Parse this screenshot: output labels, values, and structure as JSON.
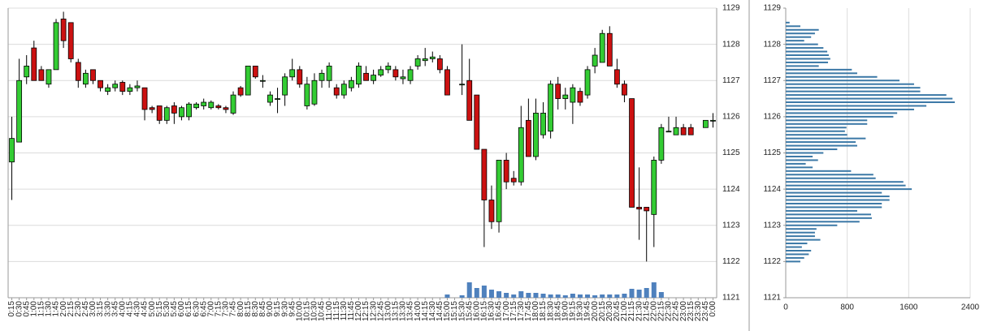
{
  "chart_data": [
    {
      "type": "candlestick",
      "x": [
        "0:15",
        "0:30",
        "0:45",
        "1:00",
        "1:15",
        "1:30",
        "1:45",
        "2:00",
        "2:15",
        "2:30",
        "2:45",
        "3:00",
        "3:15",
        "3:30",
        "3:45",
        "4:00",
        "4:15",
        "4:30",
        "4:45",
        "5:00",
        "5:15",
        "5:30",
        "5:45",
        "6:00",
        "6:15",
        "6:30",
        "6:45",
        "7:00",
        "7:15",
        "7:30",
        "7:45",
        "8:00",
        "8:15",
        "8:30",
        "8:45",
        "9:00",
        "9:15",
        "9:30",
        "9:45",
        "10:00",
        "10:15",
        "10:30",
        "10:45",
        "11:00",
        "11:15",
        "11:30",
        "11:45",
        "12:00",
        "12:15",
        "12:30",
        "12:45",
        "13:00",
        "13:15",
        "13:30",
        "13:45",
        "14:00",
        "14:15",
        "14:30",
        "14:45",
        "15:00",
        "15:15",
        "15:30",
        "15:45",
        "16:00",
        "16:15",
        "16:30",
        "16:45",
        "17:00",
        "17:15",
        "17:30",
        "17:45",
        "18:00",
        "18:15",
        "18:30",
        "18:45",
        "19:00",
        "19:15",
        "19:30",
        "19:45",
        "20:00",
        "20:15",
        "20:30",
        "20:45",
        "21:00",
        "21:15",
        "21:30",
        "21:45",
        "22:00",
        "22:15",
        "22:30",
        "22:45",
        "23:00",
        "23:15",
        "23:30",
        "23:45",
        "0:00"
      ],
      "open": [
        1124.75,
        1125.3,
        1127.1,
        1127.9,
        1127.3,
        1126.9,
        1127.3,
        1128.7,
        1128.6,
        1127.5,
        1126.9,
        1127.3,
        1127.0,
        1126.7,
        1126.8,
        1126.95,
        1126.7,
        1126.8,
        1126.8,
        1126.25,
        1126.3,
        1125.9,
        1126.3,
        1126.0,
        1126.0,
        1126.25,
        1126.3,
        1126.25,
        1126.3,
        1126.25,
        1126.1,
        1126.8,
        1126.6,
        1127.4,
        1127.0,
        1126.4,
        1126.5,
        1126.6,
        1127.1,
        1127.3,
        1126.3,
        1126.35,
        1127.0,
        1127.0,
        1126.8,
        1126.6,
        1126.8,
        1126.9,
        1127.2,
        1127.0,
        1127.15,
        1127.3,
        1127.3,
        1127.05,
        1127.0,
        1127.4,
        1127.55,
        1127.6,
        1127.6,
        1127.3,
        null,
        1126.9,
        1127.0,
        1126.6,
        1125.1,
        1123.7,
        1123.1,
        1124.8,
        1124.3,
        1124.2,
        1125.9,
        1124.9,
        1125.5,
        1125.6,
        1126.9,
        1126.5,
        1126.4,
        1126.7,
        1126.6,
        1127.4,
        1127.5,
        1128.3,
        1127.3,
        1126.9,
        1126.5,
        1123.5,
        1123.5,
        1123.3,
        1124.8,
        1125.6,
        1125.5,
        1125.7,
        1125.7,
        null,
        1125.7,
        1125.9
      ],
      "high": [
        1126.0,
        1127.6,
        1127.7,
        1128.1,
        1127.4,
        1127.3,
        1128.7,
        1128.9,
        1128.6,
        1127.6,
        1127.3,
        1127.3,
        1127.0,
        1126.9,
        1127.0,
        1127.0,
        1126.9,
        1127.0,
        1126.8,
        1126.3,
        1126.3,
        1126.3,
        1126.4,
        1126.3,
        1126.4,
        1126.4,
        1126.5,
        1126.45,
        1126.35,
        1126.3,
        1126.7,
        1126.85,
        1127.4,
        1127.4,
        1127.15,
        1126.7,
        1126.8,
        1127.2,
        1127.6,
        1127.4,
        1127.1,
        1127.2,
        1127.3,
        1127.5,
        1126.9,
        1127.0,
        1127.1,
        1127.5,
        1127.4,
        1127.3,
        1127.4,
        1127.5,
        1127.4,
        1127.3,
        1127.4,
        1127.7,
        1127.9,
        1127.8,
        1127.7,
        1127.4,
        null,
        1128.0,
        1127.6,
        1126.6,
        1125.1,
        1124.1,
        1124.8,
        1125.0,
        1124.5,
        1126.3,
        1126.5,
        1126.5,
        1126.4,
        1127.0,
        1127.1,
        1126.8,
        1126.9,
        1126.8,
        1127.4,
        1127.9,
        1128.4,
        1128.5,
        1127.6,
        1127.0,
        1126.5,
        1124.6,
        1123.5,
        1124.9,
        1125.8,
        1126.0,
        1126.0,
        1125.8,
        1125.8,
        null,
        1125.9,
        1126.1
      ],
      "low": [
        1123.7,
        1125.3,
        1126.9,
        1127.0,
        1127.0,
        1126.8,
        1127.3,
        1127.9,
        1127.5,
        1126.8,
        1126.8,
        1126.9,
        1126.7,
        1126.6,
        1126.7,
        1126.6,
        1126.6,
        1126.7,
        1125.9,
        1126.1,
        1125.8,
        1125.8,
        1125.8,
        1125.9,
        1125.9,
        1126.2,
        1126.2,
        1126.2,
        1126.2,
        1126.1,
        1126.05,
        1126.55,
        1126.6,
        1127.05,
        1126.8,
        1126.3,
        1126.1,
        1126.3,
        1127.0,
        1126.8,
        1126.2,
        1126.3,
        1126.8,
        1126.8,
        1126.5,
        1126.5,
        1126.7,
        1126.8,
        1127.0,
        1126.9,
        1127.1,
        1127.2,
        1127.0,
        1126.9,
        1126.9,
        1127.3,
        1127.4,
        1127.5,
        1127.2,
        1126.6,
        null,
        1126.6,
        1125.9,
        1125.1,
        1122.4,
        1122.9,
        1122.8,
        1124.0,
        1124.1,
        1124.1,
        1124.9,
        1124.8,
        1125.4,
        1125.4,
        1126.2,
        1126.2,
        1125.8,
        1126.3,
        1126.5,
        1127.2,
        1127.5,
        1127.4,
        1126.8,
        1126.4,
        1123.5,
        1122.6,
        1122.0,
        1122.4,
        1124.7,
        1125.6,
        1125.5,
        1125.5,
        1125.5,
        null,
        1125.7,
        1125.7
      ],
      "close": [
        1125.4,
        1127.0,
        1127.4,
        1127.0,
        1127.0,
        1127.3,
        1128.6,
        1128.1,
        1127.6,
        1127.0,
        1127.2,
        1127.0,
        1126.8,
        1126.8,
        1126.9,
        1126.7,
        1126.8,
        1126.85,
        1126.2,
        1126.2,
        1125.9,
        1126.25,
        1126.1,
        1126.25,
        1126.35,
        1126.35,
        1126.4,
        1126.4,
        1126.25,
        1126.2,
        1126.6,
        1126.6,
        1127.4,
        1127.1,
        1127.0,
        1126.6,
        1126.5,
        1127.1,
        1127.3,
        1126.9,
        1126.9,
        1127.0,
        1127.2,
        1127.4,
        1126.6,
        1126.9,
        1127.0,
        1127.4,
        1127.0,
        1127.15,
        1127.3,
        1127.4,
        1127.1,
        1127.1,
        1127.3,
        1127.6,
        1127.6,
        1127.65,
        1127.3,
        1126.6,
        null,
        1126.9,
        1125.9,
        1125.1,
        1123.7,
        1123.1,
        1124.8,
        1124.2,
        1124.2,
        1125.7,
        1124.9,
        1126.1,
        1126.1,
        1126.9,
        1126.5,
        1126.6,
        1126.8,
        1126.4,
        1127.3,
        1127.7,
        1128.3,
        1127.4,
        1126.9,
        1126.6,
        1123.5,
        1123.45,
        1123.4,
        1124.8,
        1125.7,
        1125.6,
        1125.7,
        1125.5,
        1125.5,
        null,
        1125.9,
        1125.9
      ],
      "volume": [
        0,
        0,
        0,
        0,
        0,
        0,
        0,
        0,
        0,
        0,
        0,
        0,
        0,
        0,
        0,
        0,
        0,
        0,
        0,
        0,
        0,
        0,
        0,
        0,
        0,
        0,
        0,
        0,
        0,
        0,
        0,
        0,
        0,
        0,
        0,
        0,
        0,
        0,
        0,
        0,
        0,
        0,
        0,
        0,
        0,
        0,
        0,
        0,
        0,
        0,
        0,
        0,
        0,
        0,
        0,
        0,
        0,
        0,
        0,
        4,
        0,
        3,
        19,
        12,
        15,
        10,
        8,
        6,
        4,
        8,
        6,
        6,
        5,
        4,
        4,
        3,
        5,
        4,
        4,
        3,
        4,
        4,
        4,
        5,
        11,
        10,
        12,
        19,
        7,
        0,
        0,
        0,
        0,
        0,
        0,
        0
      ],
      "up_color": "#33cc33",
      "down_color": "#cc1111",
      "volume_color": "#4f81bd",
      "ylim": [
        1121,
        1129
      ],
      "yticks": [
        1121,
        1122,
        1123,
        1124,
        1125,
        1126,
        1127,
        1128,
        1129
      ],
      "grid": true
    },
    {
      "type": "bar",
      "orientation": "horizontal",
      "y": [
        1128.6,
        1128.5,
        1128.4,
        1128.3,
        1128.2,
        1128.1,
        1128.0,
        1127.9,
        1127.8,
        1127.7,
        1127.6,
        1127.5,
        1127.4,
        1127.3,
        1127.2,
        1127.1,
        1127.0,
        1126.9,
        1126.8,
        1126.7,
        1126.6,
        1126.5,
        1126.4,
        1126.3,
        1126.2,
        1126.1,
        1126.0,
        1125.9,
        1125.8,
        1125.7,
        1125.6,
        1125.5,
        1125.4,
        1125.3,
        1125.2,
        1125.1,
        1125.0,
        1124.9,
        1124.8,
        1124.7,
        1124.6,
        1124.5,
        1124.4,
        1124.3,
        1124.2,
        1124.1,
        1124.0,
        1123.9,
        1123.8,
        1123.7,
        1123.6,
        1123.5,
        1123.4,
        1123.3,
        1123.2,
        1123.1,
        1123.0,
        1122.9,
        1122.8,
        1122.7,
        1122.6,
        1122.5,
        1122.4,
        1122.3,
        1122.2,
        1122.1,
        1122.0
      ],
      "values": [
        50,
        190,
        430,
        380,
        330,
        240,
        420,
        490,
        540,
        560,
        580,
        550,
        430,
        860,
        930,
        1190,
        1480,
        1670,
        1750,
        1750,
        2090,
        2170,
        2200,
        1830,
        1670,
        1450,
        1400,
        1060,
        1060,
        790,
        770,
        800,
        1040,
        910,
        930,
        670,
        490,
        350,
        420,
        260,
        350,
        850,
        1140,
        1170,
        1530,
        1560,
        1640,
        1250,
        1350,
        1350,
        1250,
        1250,
        930,
        1110,
        1120,
        960,
        670,
        400,
        380,
        380,
        450,
        280,
        210,
        330,
        300,
        240,
        190
      ],
      "color": "#3b78a6",
      "xlim": [
        0,
        2400
      ],
      "xticks": [
        0,
        800,
        1600,
        2400
      ],
      "ylim": [
        1121,
        1129
      ],
      "yticks": [
        1121,
        1122,
        1123,
        1124,
        1125,
        1126,
        1127,
        1128,
        1129
      ],
      "grid": true
    }
  ]
}
